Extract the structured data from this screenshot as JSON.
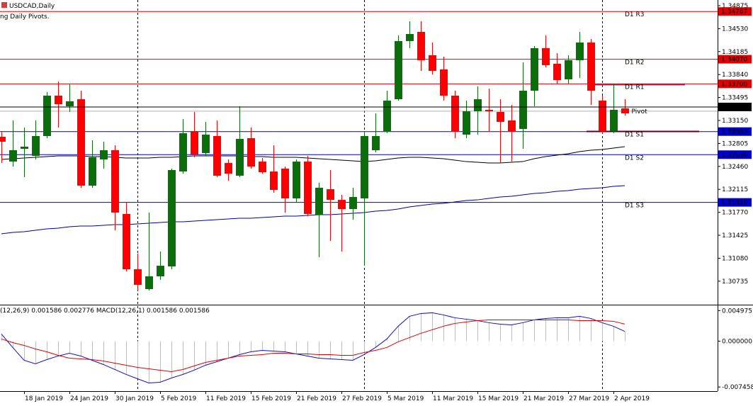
{
  "header": {
    "symbol": "USDCAD,Daily",
    "indicator": "ng Daily Pivots."
  },
  "chart_data": [
    {
      "type": "candlestick",
      "categories": [
        null,
        null,
        "18 Jan 2019",
        null,
        null,
        null,
        "24 Jan 2019",
        null,
        null,
        null,
        "30 Jan 2019",
        null,
        null,
        null,
        "5 Feb 2019",
        null,
        null,
        null,
        "11 Feb 2019",
        null,
        null,
        null,
        "15 Feb 2019",
        null,
        null,
        null,
        "21 Feb 2019",
        null,
        null,
        null,
        "27 Feb 2019",
        null,
        null,
        null,
        "5 Mar 2019",
        null,
        null,
        null,
        "11 Mar 2019",
        null,
        null,
        null,
        "15 Mar 2019",
        null,
        null,
        null,
        "21 Mar 2019",
        null,
        null,
        null,
        "27 Mar 2019",
        null,
        null,
        null,
        "2 Apr 2019",
        null
      ],
      "open": [
        1.32905,
        1.32532,
        1.32724,
        1.32618,
        1.32916,
        1.33523,
        1.33363,
        1.33469,
        1.3217,
        1.32564,
        1.32703,
        1.31745,
        1.30914,
        1.30616,
        1.30808,
        1.30957,
        1.32383,
        1.3299,
        1.3266,
        1.32916,
        1.32511,
        1.3232,
        1.32884,
        1.32532,
        1.32383,
        1.32426,
        1.31979,
        1.32532,
        1.31734,
        1.32117,
        1.31957,
        1.31819,
        1.31979,
        1.32703,
        1.3299,
        1.33469,
        1.34343,
        1.34481,
        1.3413,
        1.33917,
        1.33523,
        1.32937,
        1.33288,
        1.3331,
        1.33278,
        1.3315,
        1.33022,
        1.33597,
        1.34236,
        1.34002,
        1.33768,
        1.34055,
        1.34321,
        1.33448,
        1.3299,
        1.33331
      ],
      "high": [
        1.3299,
        1.3315,
        1.33044,
        1.3315,
        1.33576,
        1.33736,
        1.33704,
        1.33597,
        1.32852,
        1.32831,
        1.32777,
        1.31926,
        1.31148,
        1.31766,
        1.3118,
        1.32426,
        1.33171,
        1.33278,
        1.33129,
        1.3315,
        1.32564,
        1.33363,
        1.33044,
        1.32586,
        1.32777,
        1.32458,
        1.32564,
        1.32618,
        1.32213,
        1.32405,
        1.32032,
        1.32139,
        1.3299,
        1.33257,
        1.33597,
        1.34428,
        1.34641,
        1.34641,
        1.34321,
        1.34108,
        1.33597,
        1.33448,
        1.33661,
        1.33629,
        1.33469,
        1.33384,
        1.34023,
        1.34268,
        1.34428,
        1.34162,
        1.3413,
        1.34481,
        1.34375,
        1.33523,
        1.33704,
        1.33469
      ],
      "low": [
        1.32511,
        1.32458,
        1.32298,
        1.32564,
        1.32884,
        1.33044,
        1.33278,
        1.32139,
        1.32139,
        1.32426,
        1.315,
        1.30882,
        1.30595,
        1.30595,
        1.30754,
        1.30914,
        1.32351,
        1.32596,
        1.32618,
        1.32298,
        1.32245,
        1.32298,
        1.32426,
        1.32351,
        1.32064,
        1.31766,
        1.31926,
        1.31713,
        1.31095,
        1.3134,
        1.3118,
        1.31659,
        1.30967,
        1.32671,
        1.32958,
        1.33448,
        1.34236,
        1.33895,
        1.33842,
        1.33448,
        1.32884,
        1.32884,
        1.32937,
        1.3299,
        1.32511,
        1.32532,
        1.32724,
        1.33363,
        1.33949,
        1.33704,
        1.33704,
        1.33789,
        1.33384,
        1.32958,
        1.32958,
        1.33225
      ],
      "close": [
        1.32831,
        1.32703,
        1.32756,
        1.32916,
        1.33523,
        1.33395,
        1.33438,
        1.3217,
        1.32596,
        1.32703,
        1.31766,
        1.30914,
        1.3068,
        1.30808,
        1.30967,
        1.32405,
        1.32958,
        1.32639,
        1.32937,
        1.3232,
        1.32351,
        1.32873,
        1.32458,
        1.32373,
        1.32107,
        1.31979,
        1.32532,
        1.31745,
        1.32139,
        1.31957,
        1.31819,
        1.32,
        1.32916,
        1.32916,
        1.33448,
        1.34343,
        1.34449,
        1.34055,
        1.33895,
        1.33523,
        1.3299,
        1.33288,
        1.33469,
        1.33288,
        1.33129,
        1.3299,
        1.33597,
        1.34236,
        1.33981,
        1.33757,
        1.34055,
        1.34321,
        1.33597,
        1.3299,
        1.3331,
        1.33257
      ],
      "up_color": "#0a6e0a",
      "down_color": "#ff0000",
      "series": [
        {
          "color": "#000000",
          "values": [
            1.32564,
            1.32575,
            1.32586,
            1.32596,
            1.32607,
            1.32618,
            1.32618,
            1.32618,
            1.32607,
            1.32607,
            1.32596,
            1.32586,
            1.32586,
            1.32586,
            1.32596,
            1.32596,
            1.32607,
            1.32618,
            1.32618,
            1.32618,
            1.32618,
            1.32618,
            1.32607,
            1.32607,
            1.32596,
            1.32596,
            1.32596,
            1.32586,
            1.32575,
            1.32564,
            1.32554,
            1.32543,
            1.32532,
            1.32543,
            1.32564,
            1.32586,
            1.32596,
            1.32596,
            1.32586,
            1.32575,
            1.32554,
            1.32532,
            1.32522,
            1.32511,
            1.32511,
            1.32522,
            1.32532,
            1.32575,
            1.32607,
            1.32628,
            1.3265,
            1.32682,
            1.32703,
            1.32714,
            1.32735,
            1.32756
          ]
        },
        {
          "color": "#0000a0",
          "values": [
            1.31447,
            1.31468,
            1.31479,
            1.315,
            1.31521,
            1.31532,
            1.31553,
            1.31564,
            1.31564,
            1.31574,
            1.31585,
            1.31585,
            1.31596,
            1.31606,
            1.31617,
            1.31628,
            1.31628,
            1.31638,
            1.31649,
            1.31659,
            1.3167,
            1.31681,
            1.31681,
            1.31691,
            1.31702,
            1.31713,
            1.31713,
            1.31723,
            1.31734,
            1.31734,
            1.31745,
            1.31755,
            1.31766,
            1.31787,
            1.31798,
            1.31819,
            1.31851,
            1.31872,
            1.31894,
            1.31904,
            1.31926,
            1.31947,
            1.31957,
            1.31979,
            1.32,
            1.32011,
            1.32032,
            1.32053,
            1.32064,
            1.32085,
            1.32096,
            1.32117,
            1.32128,
            1.32139,
            1.3216,
            1.3217
          ]
        }
      ],
      "levels": [
        {
          "name": "D1 R3",
          "value": 1.34787,
          "color": "#e00000"
        },
        {
          "name": "D1 R2",
          "value": 1.3407,
          "value_label": "1.34070",
          "color": "#e00000"
        },
        {
          "name": "D1 R1",
          "value": 1.337,
          "value_label": "1.33700",
          "color": "#e00000"
        },
        {
          "name": "D1 S1",
          "value": 1.32983,
          "color": "#0000c8"
        },
        {
          "name": "D1 S2",
          "value": 1.32636,
          "color": "#0000c8"
        },
        {
          "name": "D1 S3",
          "value": 1.31919,
          "color": "#0000c8"
        }
      ],
      "pivot": {
        "name": "D1 Pivot",
        "value": 1.3329,
        "color": "#b0b0b0"
      },
      "bid": 1.33353,
      "ylim": [
        1.30382,
        1.3496
      ],
      "yticks": [
        {
          "value": 1.34875,
          "label": "1.34875"
        },
        {
          "value": 1.3453,
          "label": "1.34530"
        },
        {
          "value": 1.34185,
          "label": "1.34185"
        },
        {
          "value": 1.3384,
          "label": "1.33840"
        },
        {
          "value": 1.33495,
          "label": "1.33495"
        },
        {
          "value": 1.3315,
          "label": "1.33150"
        },
        {
          "value": 1.32805,
          "label": "1.32805"
        },
        {
          "value": 1.3246,
          "label": "1.32460"
        },
        {
          "value": 1.32115,
          "label": "1.32115"
        },
        {
          "value": 1.3177,
          "label": "1.31770"
        },
        {
          "value": 1.31425,
          "label": "1.31425"
        },
        {
          "value": 1.3108,
          "label": "1.31080"
        },
        {
          "value": 1.30735,
          "label": "1.30735"
        }
      ]
    },
    {
      "type": "macd",
      "title": "(12,26,9) 0.001586 0.002776 MACD(12,26,1) 0.001586 0.001586",
      "histogram_color": "#c0c0c0",
      "series": [
        {
          "color": "#1010c0",
          "values": [
            0.001153,
            -0.001038,
            -0.003113,
            -0.00369,
            -0.002998,
            -0.002421,
            -0.00196,
            -0.002421,
            -0.003113,
            -0.003805,
            -0.004612,
            -0.005419,
            -0.006111,
            -0.006803,
            -0.006688,
            -0.005996,
            -0.005419,
            -0.004727,
            -0.00392,
            -0.003344,
            -0.002767,
            -0.002191,
            -0.00173,
            -0.001499,
            -0.001614,
            -0.00173,
            -0.002075,
            -0.002421,
            -0.002767,
            -0.002883,
            -0.002998,
            -0.003113,
            -0.002191,
            -0.001038,
            0.000346,
            0.002421,
            0.004036,
            0.004497,
            0.004612,
            0.004266,
            0.003805,
            0.003575,
            0.003344,
            0.002998,
            0.002767,
            0.002652,
            0.002998,
            0.003459,
            0.00369,
            0.003805,
            0.003805,
            0.004036,
            0.00369,
            0.002998,
            0.002421,
            0.001586
          ]
        },
        {
          "color": "#e00000",
          "values": [
            0.000346,
            -0.000231,
            -0.000692,
            -0.001268,
            -0.00173,
            -0.002306,
            -0.002767,
            -0.002883,
            -0.002998,
            -0.003229,
            -0.003574,
            -0.00392,
            -0.004266,
            -0.004497,
            -0.004727,
            -0.004958,
            -0.004612,
            -0.004036,
            -0.003459,
            -0.003113,
            -0.002767,
            -0.002421,
            -0.002306,
            -0.002191,
            -0.00196,
            -0.00196,
            -0.002075,
            -0.002075,
            -0.002191,
            -0.002191,
            -0.002306,
            -0.002306,
            -0.001845,
            -0.001499,
            -0.001038,
            -0.000115,
            0.000577,
            0.001268,
            0.001845,
            0.002421,
            0.002883,
            0.003113,
            0.003344,
            0.003459,
            0.003459,
            0.003459,
            0.003459,
            0.003459,
            0.003459,
            0.003459,
            0.003459,
            0.003344,
            0.003344,
            0.003344,
            0.003229,
            0.002776
          ]
        }
      ],
      "ylim": [
        -0.0079,
        0.0057
      ],
      "yticks": [
        0.004975,
        {
          "value": 0,
          "label": "0.000000"
        },
        -0.007458
      ]
    }
  ]
}
